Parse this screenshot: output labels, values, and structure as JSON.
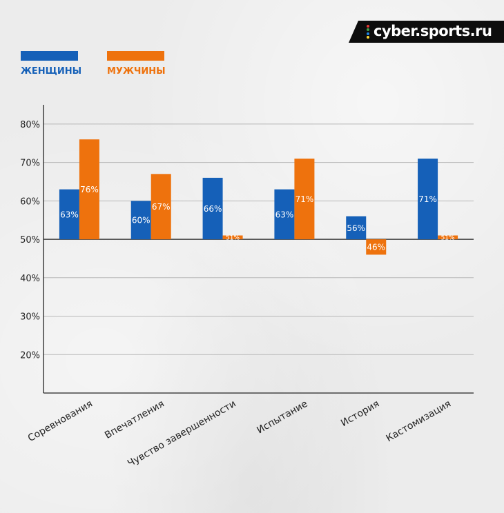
{
  "brand": {
    "text": "cyber.sports.ru",
    "dot_colors": [
      "#e53935",
      "#43a047",
      "#1e88e5",
      "#fdd835"
    ]
  },
  "colors": {
    "women": "#1560b8",
    "men": "#ee720d",
    "axis": "#222222",
    "grid": "#b7b7b7",
    "tick_text": "#222222"
  },
  "chart_data": {
    "type": "bar",
    "categories": [
      "Соревнования",
      "Впечатления",
      "Чувство завершенности",
      "Испытание",
      "История",
      "Кастомизация"
    ],
    "series": [
      {
        "name": "ЖЕНЩИНЫ",
        "values": [
          63,
          60,
          66,
          63,
          56,
          71
        ],
        "labels": [
          "63%",
          "60%",
          "66%",
          "63%",
          "56%",
          "71%"
        ]
      },
      {
        "name": "МУЖЧИНЫ",
        "values": [
          76,
          67,
          51,
          71,
          46,
          51
        ],
        "labels": [
          "76%",
          "67%",
          "51%",
          "71%",
          "46%",
          "51%"
        ]
      }
    ],
    "baseline": 50,
    "ylim": [
      10,
      85
    ],
    "yticks": [
      20,
      30,
      40,
      50,
      60,
      70,
      80
    ],
    "ytick_labels": [
      "20%",
      "30%",
      "40%",
      "50%",
      "60%",
      "70%",
      "80%"
    ],
    "grid": true,
    "legend_position": "top-left",
    "title": "",
    "xlabel": "",
    "ylabel": ""
  }
}
